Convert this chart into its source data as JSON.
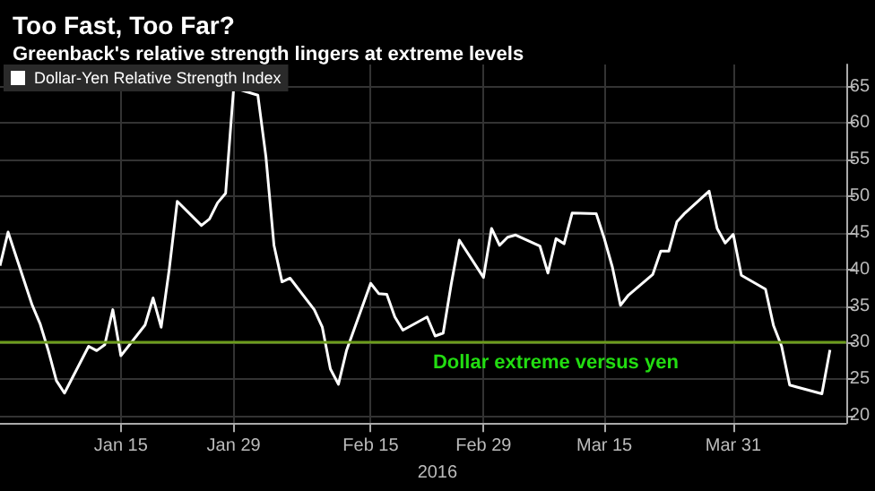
{
  "chart_data": {
    "type": "line",
    "title": "Too Fast, Too Far?",
    "subtitle": "Greenback's relative strength lingers at extreme levels",
    "xlabel": "2016",
    "x": [
      "2015-12-31",
      "2016-01-01",
      "2016-01-04",
      "2016-01-05",
      "2016-01-06",
      "2016-01-07",
      "2016-01-08",
      "2016-01-11",
      "2016-01-12",
      "2016-01-13",
      "2016-01-14",
      "2016-01-15",
      "2016-01-18",
      "2016-01-19",
      "2016-01-20",
      "2016-01-21",
      "2016-01-22",
      "2016-01-25",
      "2016-01-26",
      "2016-01-27",
      "2016-01-28",
      "2016-01-29",
      "2016-02-01",
      "2016-02-02",
      "2016-02-03",
      "2016-02-04",
      "2016-02-05",
      "2016-02-08",
      "2016-02-09",
      "2016-02-10",
      "2016-02-11",
      "2016-02-12",
      "2016-02-15",
      "2016-02-16",
      "2016-02-17",
      "2016-02-18",
      "2016-02-19",
      "2016-02-22",
      "2016-02-23",
      "2016-02-24",
      "2016-02-25",
      "2016-02-26",
      "2016-02-29",
      "2016-03-01",
      "2016-03-02",
      "2016-03-03",
      "2016-03-04",
      "2016-03-07",
      "2016-03-08",
      "2016-03-09",
      "2016-03-10",
      "2016-03-11",
      "2016-03-14",
      "2016-03-15",
      "2016-03-16",
      "2016-03-17",
      "2016-03-18",
      "2016-03-21",
      "2016-03-22",
      "2016-03-23",
      "2016-03-24",
      "2016-03-25",
      "2016-03-28",
      "2016-03-29",
      "2016-03-30",
      "2016-03-31",
      "2016-04-01",
      "2016-04-04",
      "2016-04-05",
      "2016-04-06",
      "2016-04-07",
      "2016-04-08",
      "2016-04-11",
      "2016-04-12"
    ],
    "series": [
      {
        "name": "Dollar-Yen Relative Strength Index",
        "color": "#ffffff",
        "values": [
          40.5,
          45.1,
          35.1,
          32.5,
          28.9,
          24.8,
          23.1,
          29.5,
          28.9,
          29.7,
          34.5,
          28.2,
          32.4,
          36.1,
          32.1,
          40.0,
          49.3,
          46.0,
          46.9,
          49.1,
          50.4,
          64.8,
          63.8,
          55.4,
          43.3,
          38.3,
          38.8,
          34.5,
          32.1,
          26.4,
          24.3,
          28.9,
          38.1,
          36.7,
          36.6,
          33.5,
          31.7,
          33.5,
          30.9,
          31.3,
          38.0,
          44.0,
          38.9,
          45.6,
          43.3,
          44.4,
          44.7,
          43.2,
          39.5,
          44.2,
          43.5,
          47.7,
          47.6,
          44.2,
          40.3,
          35.1,
          36.5,
          39.3,
          42.5,
          42.5,
          46.5,
          47.7,
          50.7,
          45.6,
          43.6,
          44.8,
          39.2,
          37.3,
          32.3,
          29.5,
          24.2,
          23.9,
          23.0,
          29.0
        ]
      }
    ],
    "xlim": [
      "2015-12-31",
      "2016-04-14"
    ],
    "xticks": [
      {
        "value": "2016-01-15",
        "label": "Jan 15"
      },
      {
        "value": "2016-01-29",
        "label": "Jan 29"
      },
      {
        "value": "2016-02-15",
        "label": "Feb 15"
      },
      {
        "value": "2016-02-29",
        "label": "Feb 29"
      },
      {
        "value": "2016-03-15",
        "label": "Mar 15"
      },
      {
        "value": "2016-03-31",
        "label": "Mar 31"
      }
    ],
    "ylim": [
      19,
      68
    ],
    "yticks": [
      20,
      25,
      30,
      35,
      40,
      45,
      50,
      55,
      60,
      65
    ],
    "ref_lines": [
      {
        "axis": "y",
        "value": 30,
        "label": "Dollar extreme versus yen",
        "color": "#6c9c1c"
      }
    ],
    "grid": true,
    "legend": "top left",
    "marker": "none",
    "line_style": "solid"
  }
}
